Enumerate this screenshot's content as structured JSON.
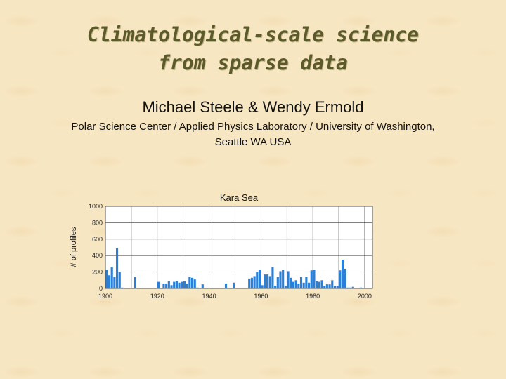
{
  "slide": {
    "title_lines": [
      "Climatological-scale science",
      "from sparse data"
    ],
    "authors": "Michael Steele & Wendy Ermold",
    "affiliation_lines": [
      "Polar Science Center / Applied Physics Laboratory / University of Washington,",
      "Seattle WA USA"
    ]
  },
  "colors": {
    "bar": "#2a7fd8",
    "title": "#5a5a2a",
    "background": "#f7e6c2"
  },
  "chart_data": {
    "type": "bar",
    "title": "Kara Sea",
    "ylabel": "# of profiles",
    "xlabel": "",
    "xlim": [
      1900,
      2003
    ],
    "ylim": [
      0,
      1000
    ],
    "xticks": [
      1900,
      1920,
      1940,
      1960,
      1980,
      2000
    ],
    "yticks": [
      0,
      200,
      400,
      600,
      800,
      1000
    ],
    "grid": true,
    "x": [
      1900,
      1901,
      1902,
      1903,
      1904,
      1905,
      1906,
      1911,
      1920,
      1922,
      1923,
      1924,
      1925,
      1926,
      1927,
      1928,
      1929,
      1930,
      1931,
      1932,
      1933,
      1934,
      1935,
      1937,
      1946,
      1949,
      1955,
      1956,
      1957,
      1958,
      1959,
      1960,
      1961,
      1962,
      1963,
      1964,
      1965,
      1966,
      1967,
      1968,
      1969,
      1970,
      1971,
      1972,
      1973,
      1974,
      1975,
      1976,
      1977,
      1978,
      1979,
      1980,
      1981,
      1982,
      1983,
      1984,
      1985,
      1986,
      1987,
      1988,
      1989,
      1990,
      1991,
      1992,
      1993,
      1994,
      1995,
      1998
    ],
    "values": [
      230,
      160,
      260,
      140,
      490,
      200,
      10,
      140,
      80,
      60,
      60,
      90,
      40,
      80,
      90,
      70,
      80,
      90,
      60,
      140,
      130,
      110,
      10,
      50,
      60,
      70,
      120,
      130,
      150,
      200,
      230,
      40,
      170,
      170,
      150,
      260,
      30,
      140,
      210,
      230,
      30,
      210,
      130,
      80,
      100,
      60,
      140,
      70,
      140,
      70,
      220,
      230,
      90,
      80,
      100,
      30,
      50,
      50,
      100,
      30,
      30,
      220,
      350,
      240,
      10,
      10,
      20,
      10
    ]
  }
}
